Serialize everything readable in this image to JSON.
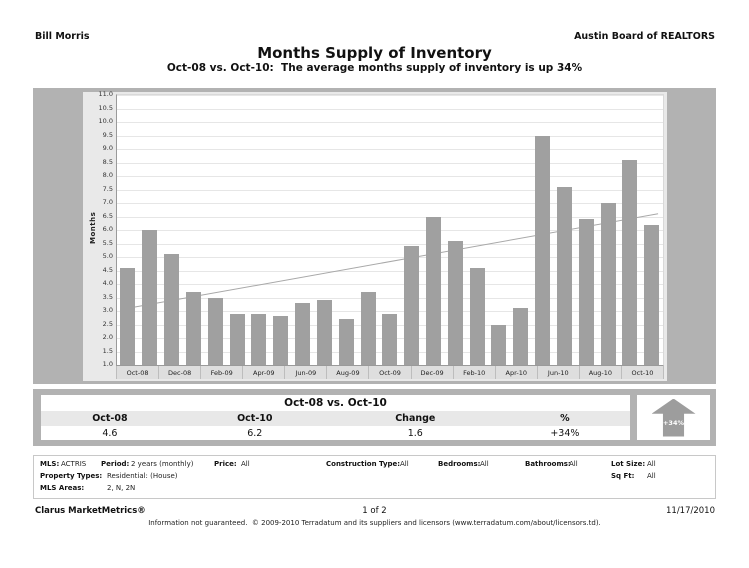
{
  "header": {
    "left": "Bill Morris",
    "right": "Austin Board of REALTORS",
    "title": "Months Supply of Inventory",
    "subtitle": "Oct-08 vs. Oct-10:  The average months supply of inventory is up 34%"
  },
  "chart_data": {
    "type": "bar",
    "ylabel": "Months",
    "xlabel": "",
    "ylim": [
      1.0,
      11.0
    ],
    "ytick_step": 0.5,
    "grid": true,
    "categories": [
      "Oct-08",
      "Nov-08",
      "Dec-08",
      "Jan-09",
      "Feb-09",
      "Mar-09",
      "Apr-09",
      "May-09",
      "Jun-09",
      "Jul-09",
      "Aug-09",
      "Sep-09",
      "Oct-09",
      "Nov-09",
      "Dec-09",
      "Jan-10",
      "Feb-10",
      "Mar-10",
      "Apr-10",
      "May-10",
      "Jun-10",
      "Jul-10",
      "Aug-10",
      "Sep-10",
      "Oct-10"
    ],
    "values": [
      4.6,
      6.0,
      5.1,
      3.7,
      3.5,
      2.9,
      2.9,
      2.8,
      3.3,
      3.4,
      2.7,
      3.7,
      2.9,
      5.4,
      6.5,
      5.6,
      4.6,
      2.5,
      3.1,
      9.5,
      7.6,
      6.4,
      7.0,
      8.6,
      6.2
    ],
    "xtick_labels": [
      "Oct-08",
      "Dec-08",
      "Feb-09",
      "Apr-09",
      "Jun-09",
      "Aug-09",
      "Oct-09",
      "Dec-09",
      "Feb-10",
      "Apr-10",
      "Jun-10",
      "Aug-10",
      "Oct-10"
    ],
    "trendline": {
      "start_value": 3.1,
      "end_value": 6.6
    }
  },
  "summary_table": {
    "title": "Oct-08 vs. Oct-10",
    "columns": [
      "Oct-08",
      "Oct-10",
      "Change",
      "%"
    ],
    "values": [
      "4.6",
      "6.2",
      "1.6",
      "+34%"
    ],
    "badge": {
      "label": "+34%",
      "direction": "up"
    }
  },
  "filters": {
    "mls_label": "MLS:",
    "mls": "ACTRIS",
    "period_label": "Period:",
    "period": "2 years (monthly)",
    "price_label": "Price:",
    "price": "All",
    "construction_label": "Construction Type:",
    "construction": "All",
    "bedrooms_label": "Bedrooms:",
    "bedrooms": "All",
    "bathrooms_label": "Bathrooms:",
    "bathrooms": "All",
    "lot_size_label": "Lot Size:",
    "lot_size": "All",
    "sq_ft_label": "Sq Ft:",
    "sq_ft": "All",
    "property_types_label": "Property Types:",
    "property_types": "Residential: (House)",
    "mls_areas_label": "MLS Areas:",
    "mls_areas": "2, N, 2N"
  },
  "footer": {
    "brand": "Clarus MarketMetrics®",
    "page": "1 of 2",
    "date": "11/17/2010",
    "disclaimer": "Information not guaranteed.  © 2009-2010 Terradatum and its suppliers and licensors (www.terradatum.com/about/licensors.td)."
  },
  "colors": {
    "bar": "#a0a0a0",
    "band": "#b2b2b2",
    "panel": "#e9e9e9",
    "trend_line": "#a8a8a8",
    "header_row": "#e8e8e8",
    "arrow": "#9d9d9d"
  }
}
